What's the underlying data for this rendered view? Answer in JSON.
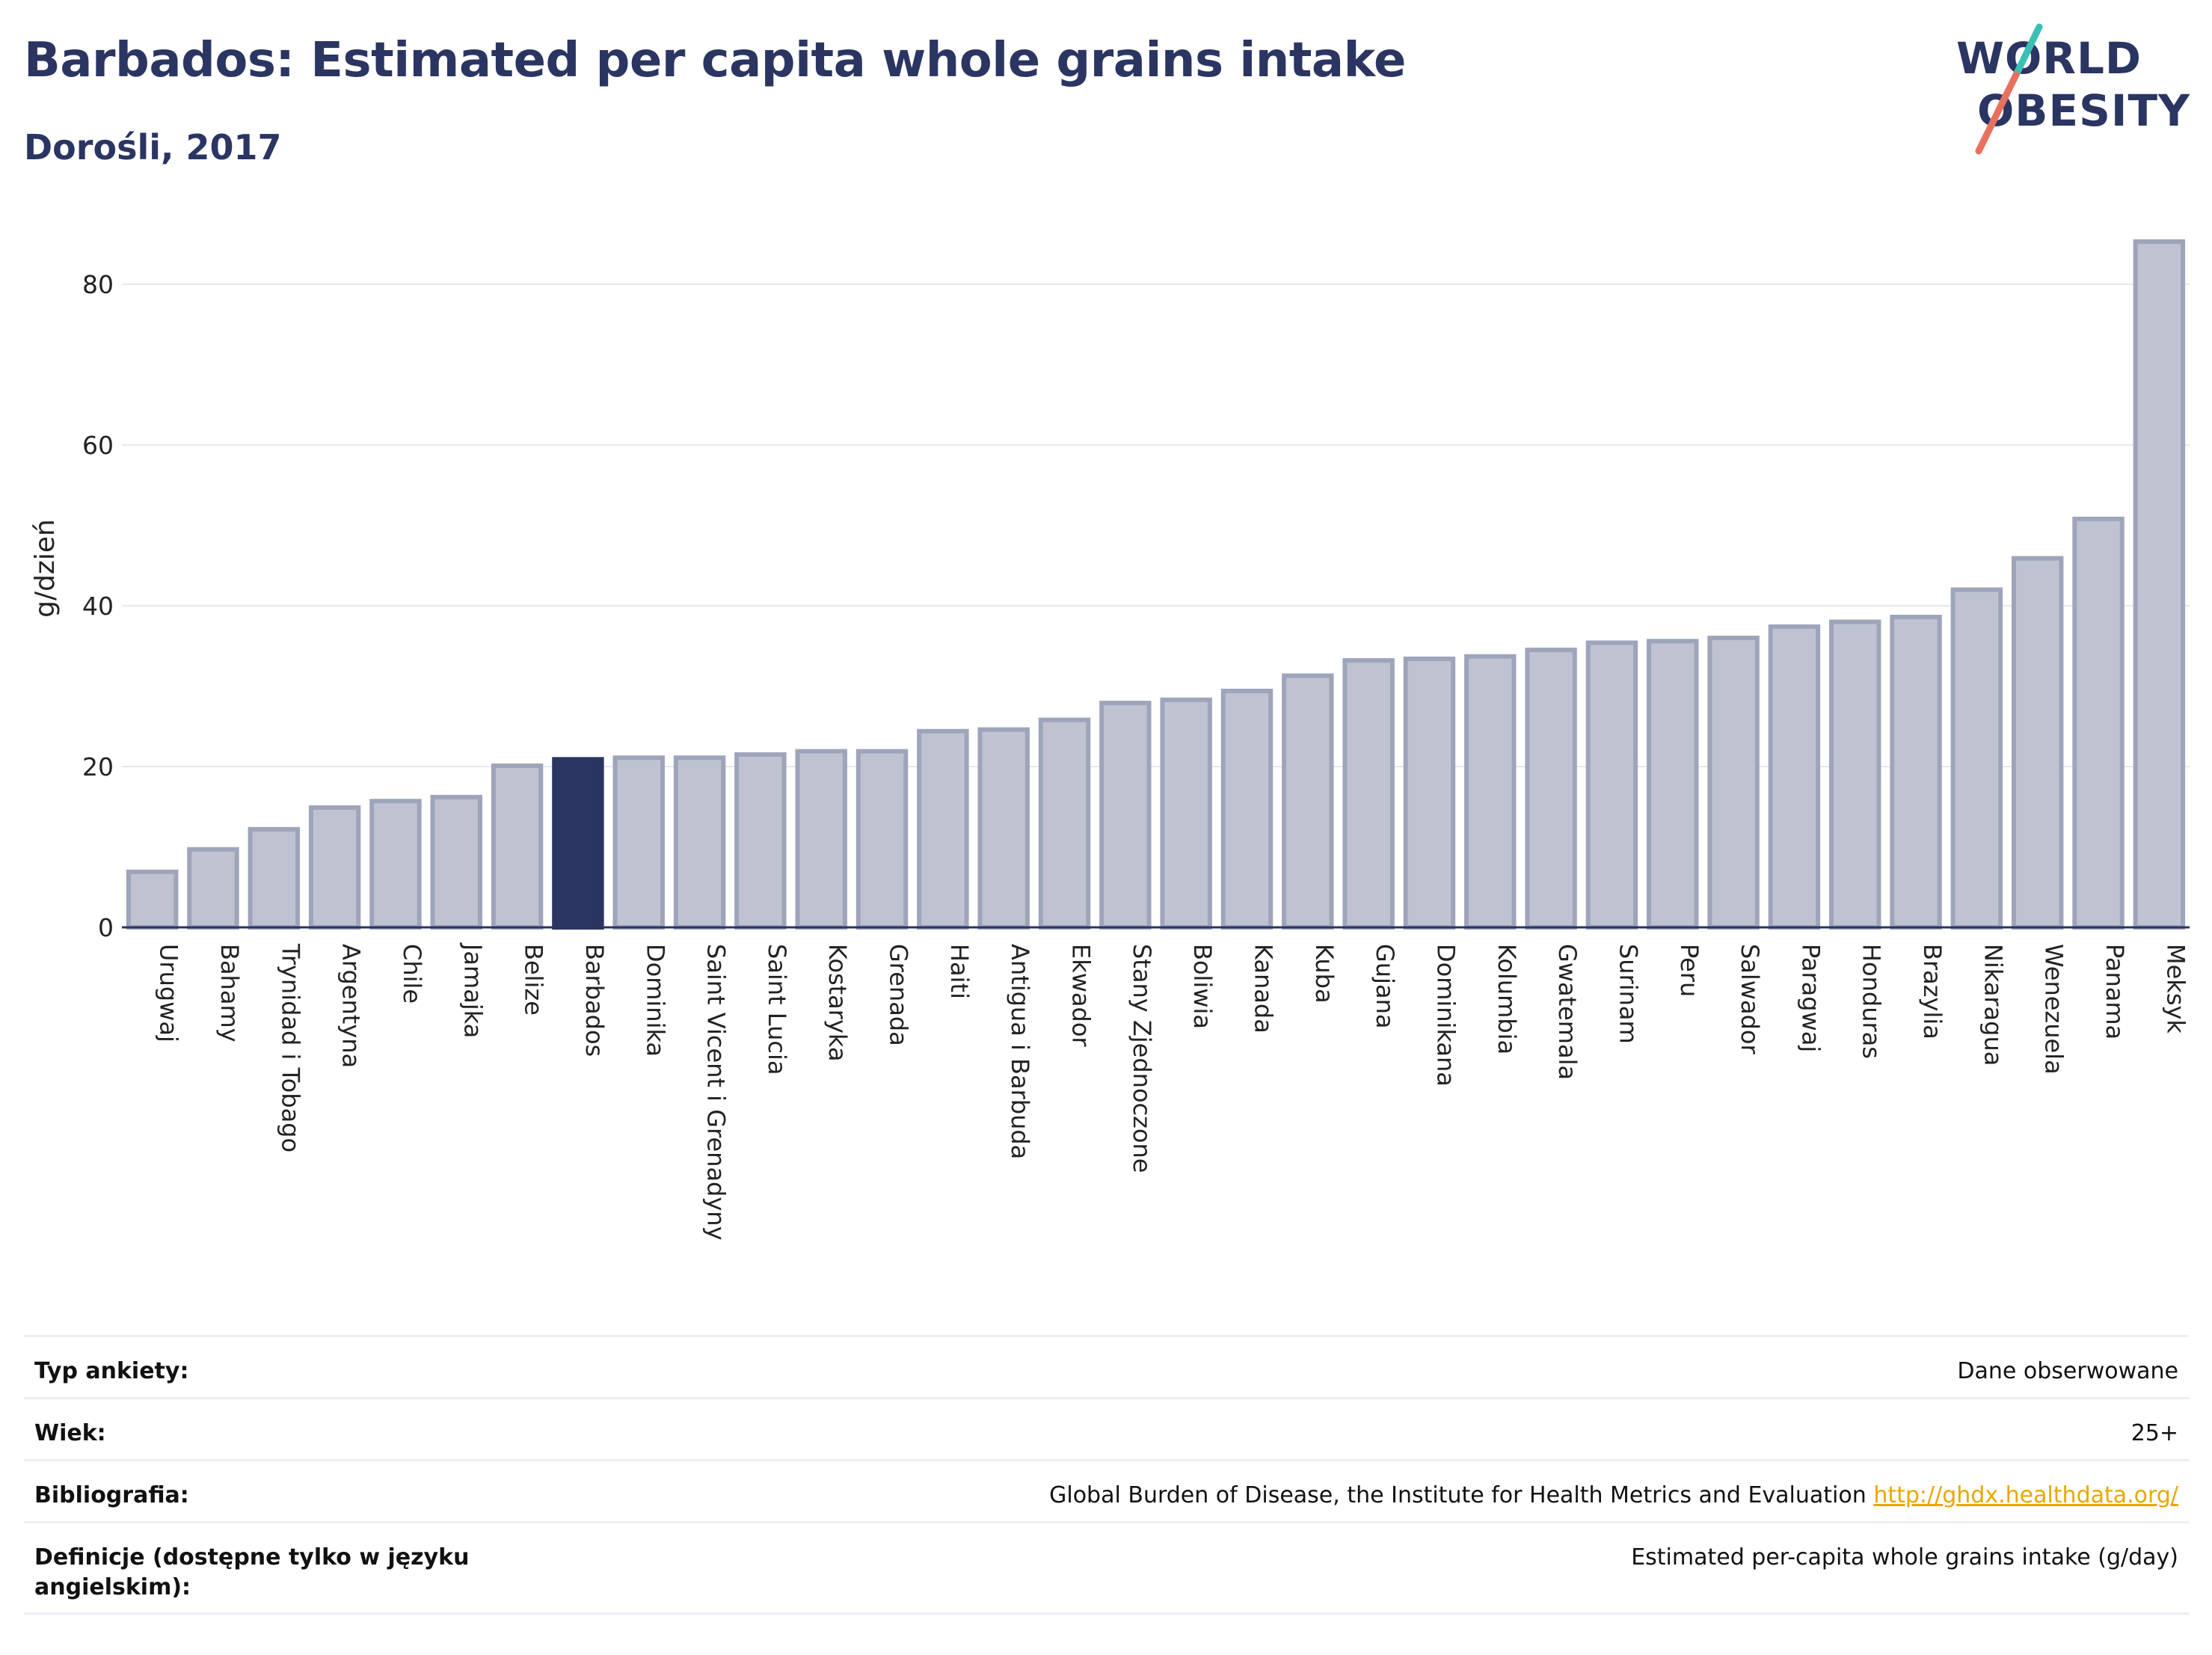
{
  "header": {
    "title": "Barbados: Estimated per capita whole grains intake",
    "subtitle": "Dorośli, 2017"
  },
  "logo": {
    "line1": "WORLD",
    "line2": "OBESITY"
  },
  "colors": {
    "highlight_bar": "#2b3562",
    "bar_fill": "#bfc3d1",
    "bar_stroke": "#9ea4ba",
    "title": "#2b3562",
    "link": "#e8a800",
    "logo_teal": "#3cc0b5",
    "logo_coral": "#e8705f"
  },
  "chart_data": {
    "type": "bar",
    "title": "Barbados: Estimated per capita whole grains intake",
    "subtitle": "Dorośli, 2017",
    "xlabel": "",
    "ylabel": "g/dzień",
    "ylim": [
      0,
      88
    ],
    "yticks": [
      0,
      20,
      40,
      60,
      80
    ],
    "grid": true,
    "highlight": "Barbados",
    "categories": [
      "Urugwaj",
      "Bahamy",
      "Trynidad i Tobago",
      "Argentyna",
      "Chile",
      "Jamajka",
      "Belize",
      "Barbados",
      "Dominika",
      "Saint Vicent i Grenadyny",
      "Saint Lucia",
      "Kostaryka",
      "Grenada",
      "Haiti",
      "Antigua i Barbuda",
      "Ekwador",
      "Stany Zjednoczone",
      "Boliwia",
      "Kanada",
      "Kuba",
      "Gujana",
      "Dominikana",
      "Kolumbia",
      "Gwatemala",
      "Surinam",
      "Peru",
      "Salwador",
      "Paragwaj",
      "Honduras",
      "Brazylia",
      "Nikaragua",
      "Wenezuela",
      "Panama",
      "Meksyk"
    ],
    "values": [
      6.9,
      9.7,
      12.2,
      14.9,
      15.7,
      16.2,
      20.1,
      20.9,
      21.1,
      21.1,
      21.5,
      21.9,
      21.9,
      24.4,
      24.6,
      25.8,
      27.9,
      28.3,
      29.4,
      31.3,
      33.2,
      33.4,
      33.7,
      34.5,
      35.4,
      35.6,
      36.0,
      37.4,
      38.0,
      38.6,
      42.0,
      45.9,
      50.8,
      85.3
    ]
  },
  "info": [
    {
      "label": "Typ ankiety:",
      "value": "Dane obserwowane"
    },
    {
      "label": "Wiek:",
      "value": "25+"
    },
    {
      "label": "Bibliografia:",
      "value": "Global Burden of Disease, the Institute for Health Metrics and Evaluation",
      "link": "http://ghdx.healthdata.org/"
    },
    {
      "label": "Definicje (dostępne tylko w języku angielskim):",
      "value": "Estimated per-capita whole grains intake (g/day)"
    }
  ]
}
